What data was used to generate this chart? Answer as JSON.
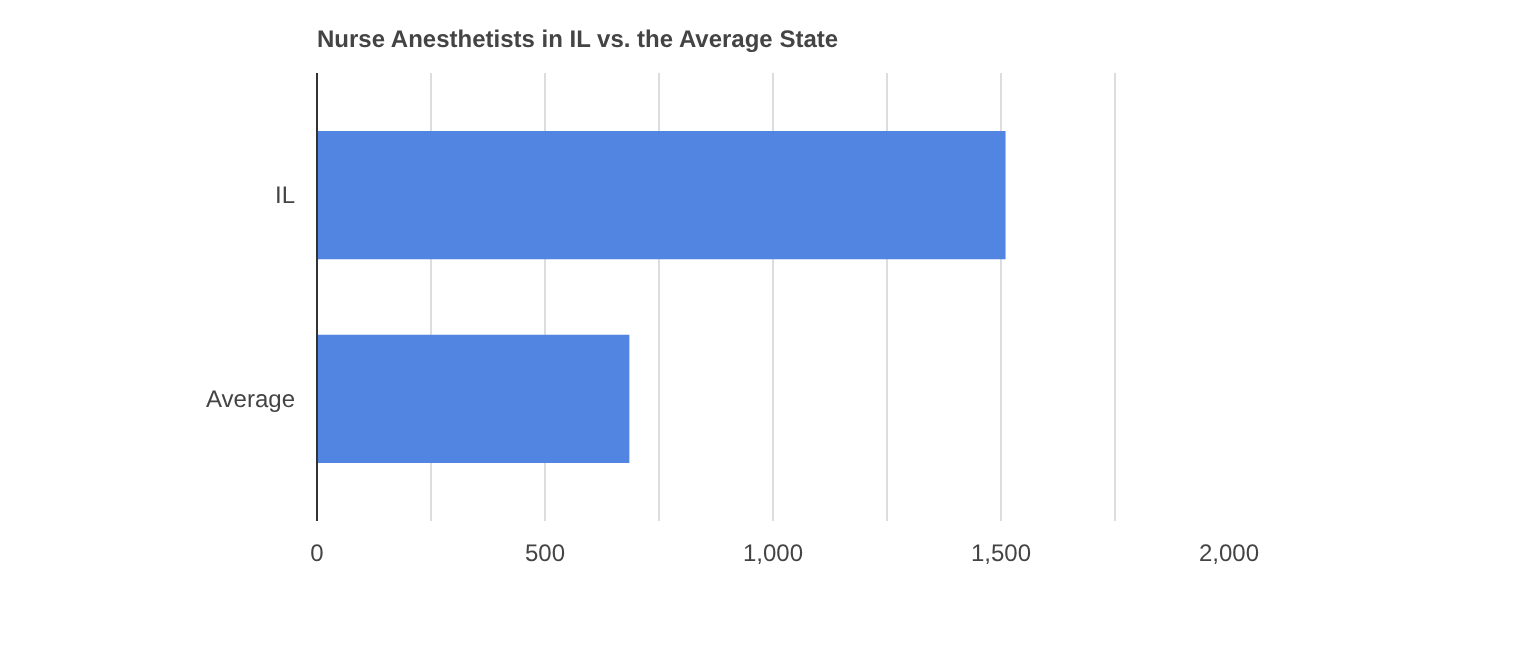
{
  "chart_data": {
    "type": "bar",
    "orientation": "horizontal",
    "title": "Nurse Anesthetists in IL vs. the Average State",
    "categories": [
      "IL",
      "Average"
    ],
    "values": [
      1510,
      685
    ],
    "color": "#5284e2",
    "xlim": [
      0,
      2000
    ],
    "xticks": [
      0,
      {
        "value": 250,
        "label": null
      },
      {
        "value": 500,
        "label": "500"
      },
      {
        "value": 750,
        "label": null
      },
      {
        "value": 1000,
        "label": "1,000"
      },
      {
        "value": 1250,
        "label": null
      },
      {
        "value": 1500,
        "label": "1,500"
      },
      {
        "value": 1750,
        "label": null
      },
      {
        "value": 2000,
        "label": "2,000"
      }
    ],
    "grid": "x"
  }
}
